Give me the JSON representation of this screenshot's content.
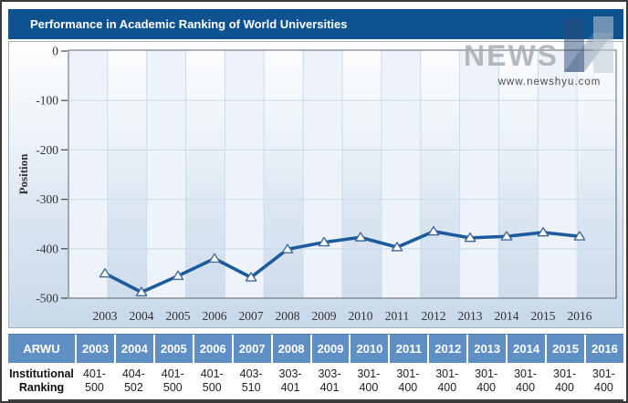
{
  "header": {
    "title": "Performance in Academic Ranking of World Universities"
  },
  "watermark": {
    "brand": "NEWS",
    "url": "www.newshyu.com"
  },
  "chart_data": {
    "type": "line",
    "title": "Performance in Academic Ranking of World Universities",
    "xlabel": "",
    "ylabel": "Position",
    "x": [
      "2003",
      "2004",
      "2005",
      "2006",
      "2007",
      "2008",
      "2009",
      "2010",
      "2011",
      "2012",
      "2013",
      "2014",
      "2015",
      "2016"
    ],
    "values": [
      -450,
      -488,
      -455,
      -420,
      -458,
      -401,
      -387,
      -377,
      -397,
      -365,
      -378,
      -375,
      -367,
      -375
    ],
    "ylim": [
      -500,
      0
    ],
    "yticks": [
      0,
      -100,
      -200,
      -300,
      -400,
      -500
    ],
    "grid": true,
    "marker": "triangle-up",
    "legend": "none",
    "line_color": "#1c5b9c",
    "marker_fill": "#ffffff",
    "marker_stroke": "#41699a"
  },
  "table": {
    "corner_label": "ARWU",
    "years": [
      "2003",
      "2004",
      "2005",
      "2006",
      "2007",
      "2008",
      "2009",
      "2010",
      "2011",
      "2012",
      "2013",
      "2014",
      "2015",
      "2016"
    ],
    "row_label_lines": [
      "Institutional",
      "Ranking"
    ],
    "ranges": [
      "401-500",
      "404-502",
      "401-500",
      "401-500",
      "403-510",
      "303-401",
      "303-401",
      "301-400",
      "301-400",
      "301-400",
      "301-400",
      "301-400",
      "301-400",
      "301-400"
    ]
  },
  "colors": {
    "title_bar": "#0e5390",
    "table_header": "#5f8fc5",
    "line": "#1c5b9c",
    "gridline": "#c8dcec",
    "band": "#edf3f9",
    "plot_border": "#5d6770",
    "axis_text": "#333333"
  }
}
